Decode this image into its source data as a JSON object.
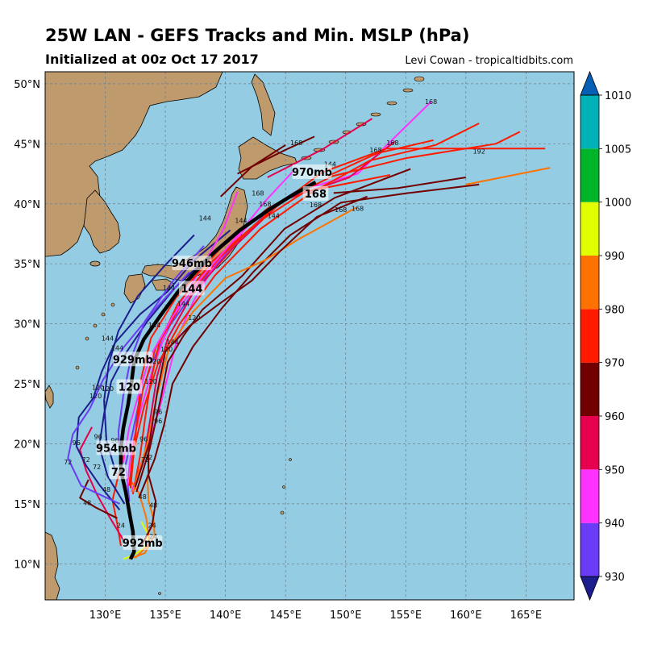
{
  "header": {
    "title": "25W LAN - GEFS Tracks and Min. MSLP (hPa)",
    "subtitle": "Initialized at 00z Oct 17 2017",
    "credit": "Levi Cowan - tropicaltidbits.com"
  },
  "map": {
    "lon_range": [
      125,
      169
    ],
    "lat_range": [
      7,
      51
    ],
    "lon_ticks": [
      "130°E",
      "135°E",
      "140°E",
      "145°E",
      "150°E",
      "155°E",
      "160°E",
      "165°E"
    ],
    "lat_ticks": [
      "10°N",
      "15°N",
      "20°N",
      "25°N",
      "30°N",
      "35°N",
      "40°N",
      "45°N",
      "50°N"
    ],
    "ocean_color": "#93cce3",
    "land_color": "#bf9a6c",
    "grid": true
  },
  "colorbar": {
    "levels": [
      "930",
      "940",
      "950",
      "960",
      "970",
      "980",
      "990",
      "1000",
      "1005",
      "1010"
    ],
    "colors": [
      "#1d1e8e",
      "#6a3cf5",
      "#ff33ff",
      "#e6004d",
      "#720000",
      "#ff1a00",
      "#ff7200",
      "#e1ff00",
      "#00b52a",
      "#00b2b8",
      "#0560b5"
    ]
  },
  "mean_track_labels": [
    {
      "text": "992mb",
      "lon": 133.1,
      "lat": 11.7
    },
    {
      "text": "954mb",
      "lon": 130.9,
      "lat": 19.6
    },
    {
      "text": "72",
      "lon": 131.1,
      "lat": 17.6
    },
    {
      "text": "929mb",
      "lon": 132.3,
      "lat": 27.0
    },
    {
      "text": "120",
      "lon": 132.0,
      "lat": 24.7
    },
    {
      "text": "946mb",
      "lon": 137.2,
      "lat": 35.0
    },
    {
      "text": "144",
      "lon": 137.2,
      "lat": 32.9
    },
    {
      "text": "970mb",
      "lon": 147.2,
      "lat": 42.6
    },
    {
      "text": "168",
      "lon": 147.5,
      "lat": 40.8
    }
  ],
  "track_hour_labels": [
    {
      "text": "168",
      "lon": 157.1,
      "lat": 48.5
    },
    {
      "text": "168",
      "lon": 145.9,
      "lat": 45.1
    },
    {
      "text": "168",
      "lon": 153.9,
      "lat": 45.1
    },
    {
      "text": "168",
      "lon": 152.5,
      "lat": 44.5
    },
    {
      "text": "192",
      "lon": 161.1,
      "lat": 44.4
    },
    {
      "text": "144",
      "lon": 148.7,
      "lat": 43.3
    },
    {
      "text": "168",
      "lon": 142.7,
      "lat": 40.9
    },
    {
      "text": "168",
      "lon": 143.3,
      "lat": 40.0
    },
    {
      "text": "144",
      "lon": 144.0,
      "lat": 39.0
    },
    {
      "text": "168",
      "lon": 147.5,
      "lat": 39.9
    },
    {
      "text": "168",
      "lon": 151.0,
      "lat": 39.6
    },
    {
      "text": "168",
      "lon": 149.6,
      "lat": 39.5
    },
    {
      "text": "144",
      "lon": 138.3,
      "lat": 38.8
    },
    {
      "text": "144",
      "lon": 141.3,
      "lat": 38.6
    },
    {
      "text": "144",
      "lon": 135.3,
      "lat": 33.0
    },
    {
      "text": "144",
      "lon": 136.5,
      "lat": 31.7
    },
    {
      "text": "120",
      "lon": 137.4,
      "lat": 30.5
    },
    {
      "text": "144",
      "lon": 134.1,
      "lat": 29.9
    },
    {
      "text": "144",
      "lon": 135.6,
      "lat": 28.5
    },
    {
      "text": "120",
      "lon": 135.1,
      "lat": 27.9
    },
    {
      "text": "144",
      "lon": 130.2,
      "lat": 28.8
    },
    {
      "text": "144",
      "lon": 131.0,
      "lat": 28.0
    },
    {
      "text": "120",
      "lon": 134.1,
      "lat": 26.9
    },
    {
      "text": "120",
      "lon": 133.8,
      "lat": 25.2
    },
    {
      "text": "120",
      "lon": 129.4,
      "lat": 24.7
    },
    {
      "text": "120",
      "lon": 130.2,
      "lat": 24.6
    },
    {
      "text": "120",
      "lon": 129.2,
      "lat": 24.0
    },
    {
      "text": "96",
      "lon": 134.4,
      "lat": 22.7
    },
    {
      "text": "96",
      "lon": 134.4,
      "lat": 21.9
    },
    {
      "text": "96",
      "lon": 129.4,
      "lat": 20.6
    },
    {
      "text": "96",
      "lon": 127.6,
      "lat": 20.1
    },
    {
      "text": "96",
      "lon": 130.8,
      "lat": 20.3
    },
    {
      "text": "96",
      "lon": 133.2,
      "lat": 20.4
    },
    {
      "text": "72",
      "lon": 126.9,
      "lat": 18.5
    },
    {
      "text": "72",
      "lon": 128.4,
      "lat": 18.7
    },
    {
      "text": "72",
      "lon": 129.3,
      "lat": 18.1
    },
    {
      "text": "72",
      "lon": 133.6,
      "lat": 18.9
    },
    {
      "text": "72",
      "lon": 133.3,
      "lat": 18.7
    },
    {
      "text": "48",
      "lon": 130.1,
      "lat": 16.2
    },
    {
      "text": "48",
      "lon": 128.5,
      "lat": 15.1
    },
    {
      "text": "48",
      "lon": 134.0,
      "lat": 14.9
    },
    {
      "text": "48",
      "lon": 133.1,
      "lat": 15.6
    },
    {
      "text": "24",
      "lon": 131.3,
      "lat": 13.2
    },
    {
      "text": "24",
      "lon": 133.9,
      "lat": 13.2
    },
    {
      "text": "24",
      "lon": 134.0,
      "lat": 12.3
    }
  ]
}
